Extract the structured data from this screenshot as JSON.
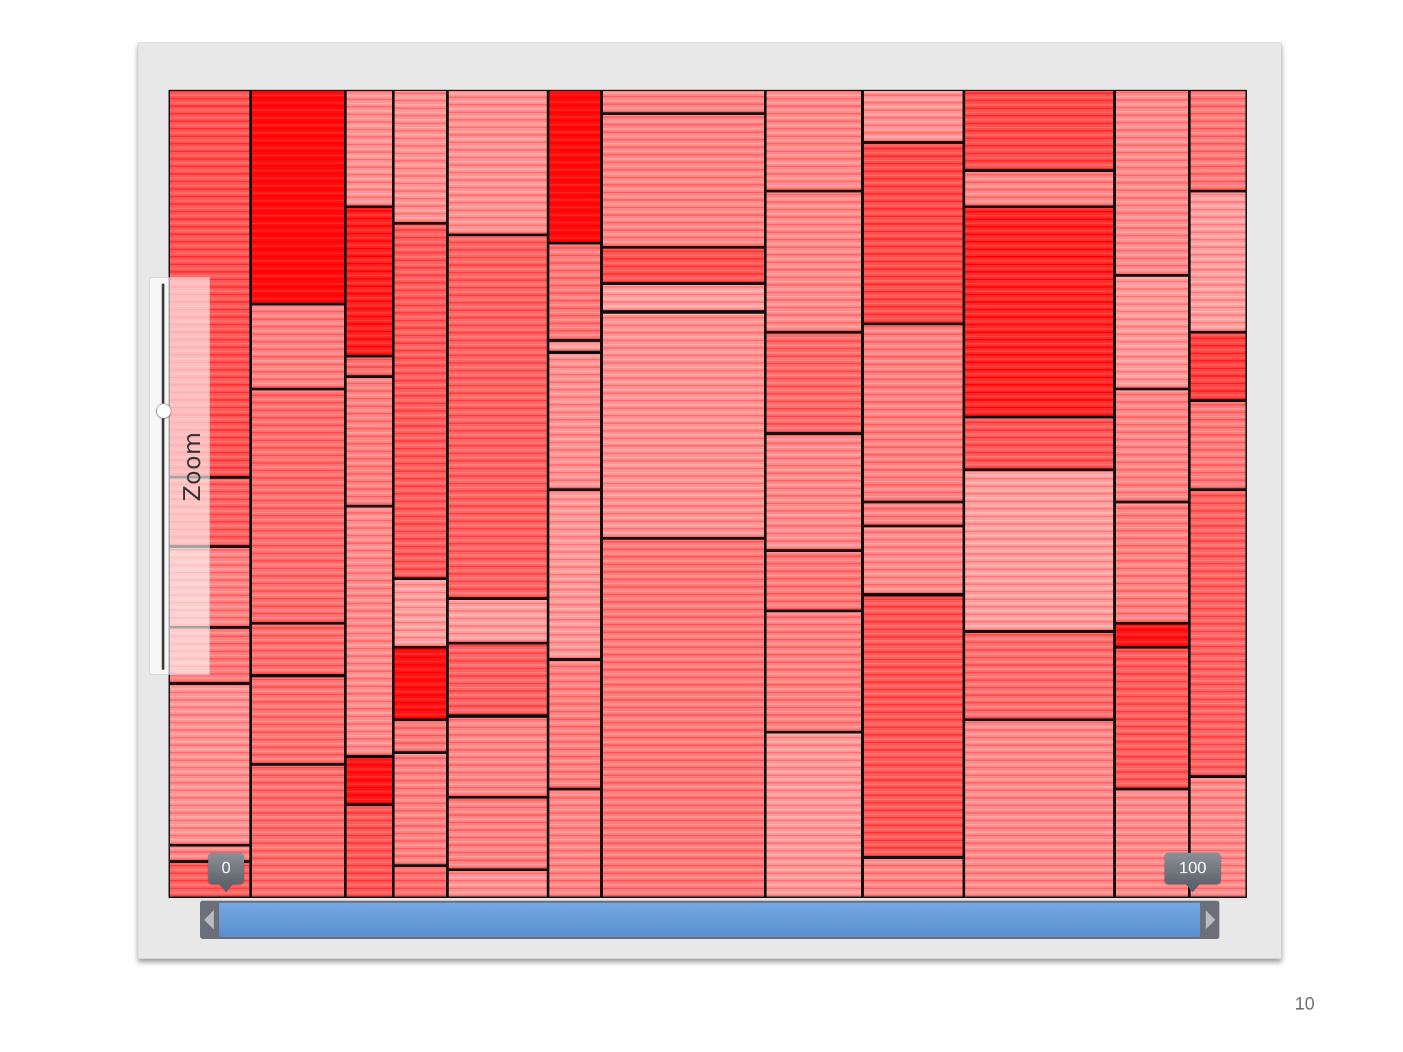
{
  "window": {
    "title": ""
  },
  "treemap": {
    "description_colors": {
      "high": "#ff0000",
      "medium": "#f47f7f",
      "low": "#fbc8c8",
      "border": "#111111"
    },
    "columns": [
      {
        "weight": 0.076,
        "cells": [
          {
            "s": 0.48,
            "v": 0.62
          },
          {
            "s": 0.085,
            "v": 0.55
          },
          {
            "s": 0.1,
            "v": 0.42
          },
          {
            "s": 0.07,
            "v": 0.45
          },
          {
            "s": 0.2,
            "v": 0.35
          },
          {
            "s": 0.02,
            "v": 0.4
          },
          {
            "s": 0.045,
            "v": 0.55
          }
        ]
      },
      {
        "weight": 0.087,
        "cells": [
          {
            "s": 0.265,
            "v": 0.95
          },
          {
            "s": 0.105,
            "v": 0.42
          },
          {
            "s": 0.29,
            "v": 0.5
          },
          {
            "s": 0.065,
            "v": 0.5
          },
          {
            "s": 0.11,
            "v": 0.48
          },
          {
            "s": 0.165,
            "v": 0.5
          }
        ]
      },
      {
        "weight": 0.044,
        "cells": [
          {
            "s": 0.145,
            "v": 0.35
          },
          {
            "s": 0.185,
            "v": 0.85
          },
          {
            "s": 0.025,
            "v": 0.5
          },
          {
            "s": 0.16,
            "v": 0.42
          },
          {
            "s": 0.31,
            "v": 0.38
          },
          {
            "s": 0.06,
            "v": 0.9
          },
          {
            "s": 0.115,
            "v": 0.6
          }
        ]
      },
      {
        "weight": 0.05,
        "cells": [
          {
            "s": 0.165,
            "v": 0.35
          },
          {
            "s": 0.44,
            "v": 0.58
          },
          {
            "s": 0.085,
            "v": 0.3
          },
          {
            "s": 0.09,
            "v": 0.92
          },
          {
            "s": 0.04,
            "v": 0.45
          },
          {
            "s": 0.14,
            "v": 0.42
          },
          {
            "s": 0.04,
            "v": 0.5
          }
        ]
      },
      {
        "weight": 0.093,
        "cells": [
          {
            "s": 0.18,
            "v": 0.35
          },
          {
            "s": 0.45,
            "v": 0.55
          },
          {
            "s": 0.055,
            "v": 0.3
          },
          {
            "s": 0.09,
            "v": 0.55
          },
          {
            "s": 0.1,
            "v": 0.4
          },
          {
            "s": 0.09,
            "v": 0.42
          },
          {
            "s": 0.035,
            "v": 0.35
          }
        ]
      },
      {
        "weight": 0.049,
        "cells": [
          {
            "s": 0.19,
            "v": 0.95
          },
          {
            "s": 0.12,
            "v": 0.45
          },
          {
            "s": 0.015,
            "v": 0.3
          },
          {
            "s": 0.17,
            "v": 0.35
          },
          {
            "s": 0.21,
            "v": 0.32
          },
          {
            "s": 0.16,
            "v": 0.42
          },
          {
            "s": 0.135,
            "v": 0.4
          }
        ]
      },
      {
        "weight": 0.151,
        "cells": [
          {
            "s": 0.03,
            "v": 0.4
          },
          {
            "s": 0.165,
            "v": 0.4
          },
          {
            "s": 0.045,
            "v": 0.62
          },
          {
            "s": 0.035,
            "v": 0.3
          },
          {
            "s": 0.28,
            "v": 0.35
          },
          {
            "s": 0.445,
            "v": 0.45
          }
        ]
      },
      {
        "weight": 0.09,
        "cells": [
          {
            "s": 0.125,
            "v": 0.38
          },
          {
            "s": 0.175,
            "v": 0.38
          },
          {
            "s": 0.125,
            "v": 0.52
          },
          {
            "s": 0.145,
            "v": 0.38
          },
          {
            "s": 0.075,
            "v": 0.45
          },
          {
            "s": 0.15,
            "v": 0.42
          },
          {
            "s": 0.205,
            "v": 0.32
          }
        ]
      },
      {
        "weight": 0.093,
        "cells": [
          {
            "s": 0.065,
            "v": 0.35
          },
          {
            "s": 0.225,
            "v": 0.65
          },
          {
            "s": 0.22,
            "v": 0.42
          },
          {
            "s": 0.03,
            "v": 0.42
          },
          {
            "s": 0.085,
            "v": 0.38
          },
          {
            "s": 0.325,
            "v": 0.6
          },
          {
            "s": 0.05,
            "v": 0.4
          }
        ]
      },
      {
        "weight": 0.139,
        "cells": [
          {
            "s": 0.1,
            "v": 0.65
          },
          {
            "s": 0.045,
            "v": 0.4
          },
          {
            "s": 0.26,
            "v": 0.82
          },
          {
            "s": 0.065,
            "v": 0.6
          },
          {
            "s": 0.2,
            "v": 0.3
          },
          {
            "s": 0.11,
            "v": 0.5
          },
          {
            "s": 0.22,
            "v": 0.38
          }
        ]
      },
      {
        "weight": 0.069,
        "cells": [
          {
            "s": 0.23,
            "v": 0.38
          },
          {
            "s": 0.14,
            "v": 0.32
          },
          {
            "s": 0.14,
            "v": 0.4
          },
          {
            "s": 0.15,
            "v": 0.42
          },
          {
            "s": 0.03,
            "v": 0.9
          },
          {
            "s": 0.175,
            "v": 0.58
          },
          {
            "s": 0.135,
            "v": 0.38
          }
        ]
      },
      {
        "weight": 0.053,
        "cells": [
          {
            "s": 0.125,
            "v": 0.45
          },
          {
            "s": 0.175,
            "v": 0.3
          },
          {
            "s": 0.085,
            "v": 0.7
          },
          {
            "s": 0.11,
            "v": 0.45
          },
          {
            "s": 0.355,
            "v": 0.55
          },
          {
            "s": 0.15,
            "v": 0.38
          }
        ]
      }
    ]
  },
  "zoom": {
    "label": "Zoom",
    "level": 0.3
  },
  "range": {
    "min_label": "0",
    "max_label": "100",
    "min": 0,
    "max": 100
  },
  "slide": {
    "number": "10"
  }
}
